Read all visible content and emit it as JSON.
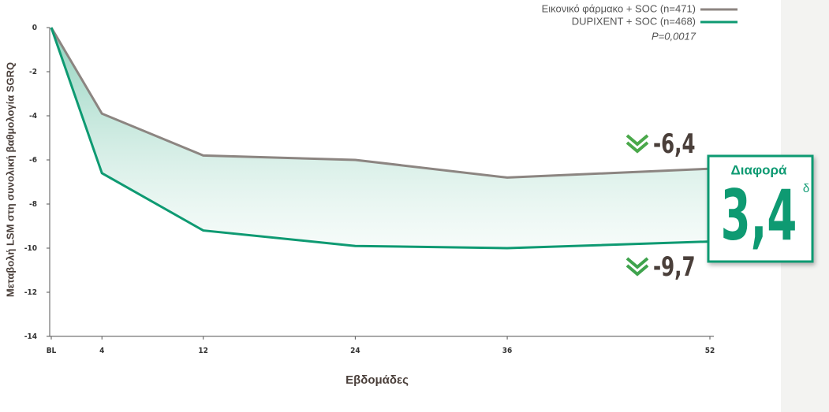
{
  "chart_data": {
    "type": "line",
    "y_label": "Μεταβολή LSM στη συνολική βαθμολογία SGRQ",
    "x_label": "Εβδομάδες",
    "x": [
      0,
      4,
      12,
      24,
      36,
      52
    ],
    "xlim": [
      0,
      52
    ],
    "xticks": [
      {
        "value": 0,
        "label": "BL"
      },
      4,
      12,
      24,
      36,
      52
    ],
    "ylim": [
      -14,
      0
    ],
    "yticks": [
      0,
      -2,
      -4,
      -6,
      -8,
      -10,
      -12,
      -14
    ],
    "series": [
      {
        "name": "Εικονικό φάρμακο + SOC (n=471)",
        "color": "#8c8581",
        "values": [
          0,
          -3.9,
          -5.8,
          -6.0,
          -6.8,
          -6.4
        ],
        "value_labels": [
          null,
          null,
          null,
          null,
          null,
          "-6,4"
        ]
      },
      {
        "name": "DUPIXENT + SOC (n=468)",
        "color": "#0e9a72",
        "values": [
          0,
          -6.6,
          -9.2,
          -9.9,
          -10.0,
          -9.7
        ],
        "value_labels": [
          null,
          null,
          null,
          null,
          null,
          "-9,7"
        ]
      }
    ],
    "p_value": "P=0,0017",
    "difference": {
      "title": "Διαφορά",
      "text": "3,4",
      "footnote": "δ"
    }
  }
}
